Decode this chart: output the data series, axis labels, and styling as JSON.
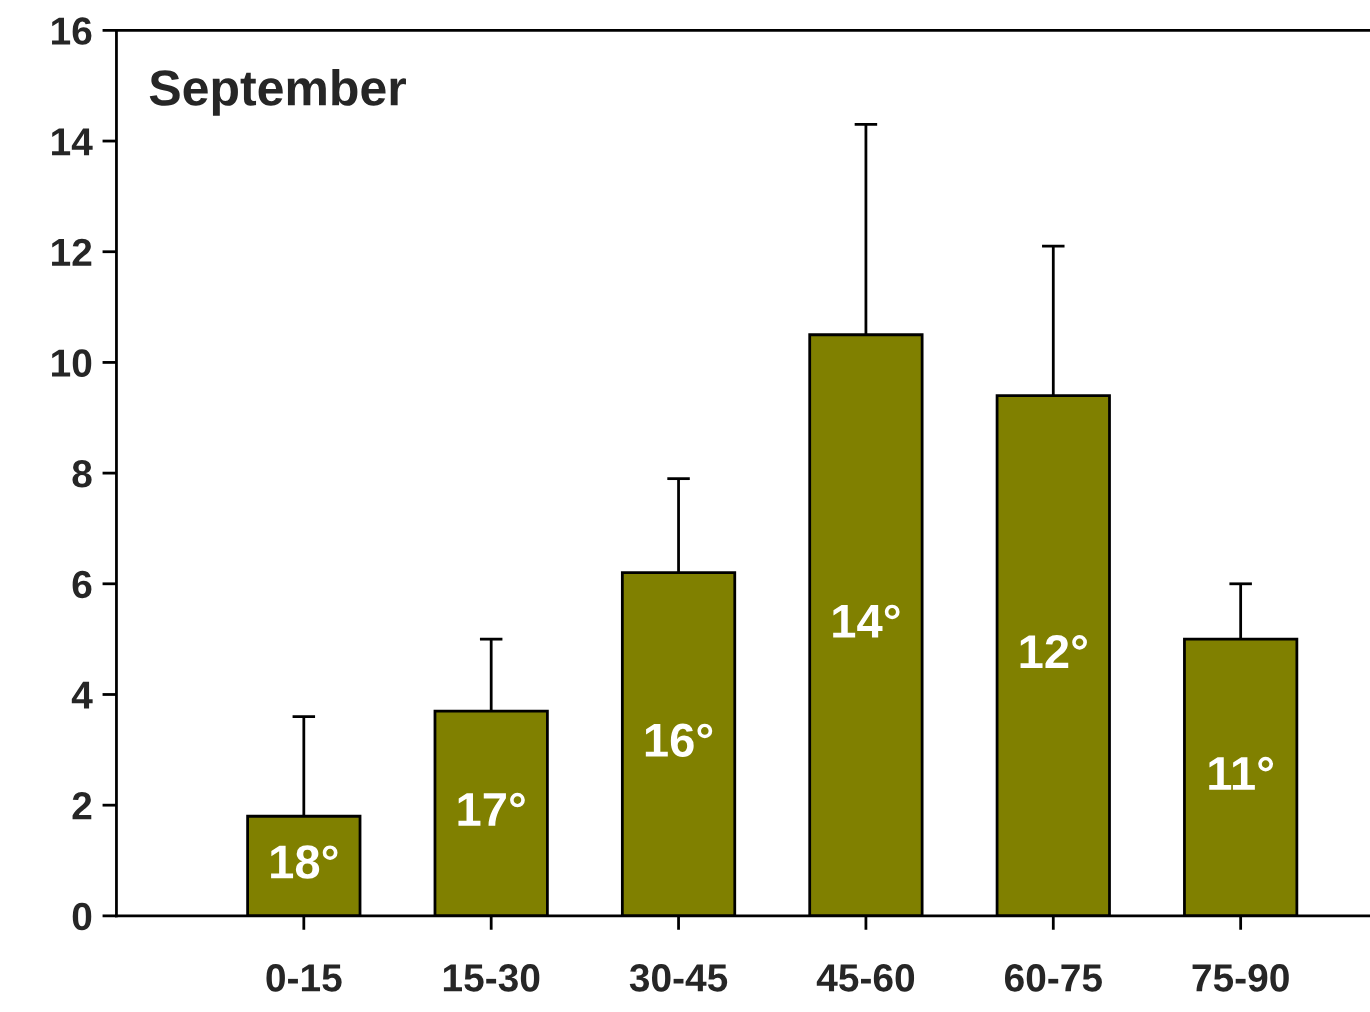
{
  "chart_data": {
    "type": "bar",
    "title": "September",
    "categories": [
      "0-15",
      "15-30",
      "30-45",
      "45-60",
      "60-75",
      "75-90"
    ],
    "values": [
      1.8,
      3.7,
      6.2,
      10.5,
      9.4,
      5.0
    ],
    "errors": [
      [
        1.8,
        3.6
      ],
      [
        3.7,
        5.0
      ],
      [
        6.2,
        7.9
      ],
      [
        10.5,
        14.3
      ],
      [
        9.4,
        12.1
      ],
      [
        5.0,
        6.0
      ]
    ],
    "annotations": [
      "18°",
      "17°",
      "16°",
      "14°",
      "12°",
      "11°"
    ],
    "color": "#808000",
    "ylim": [
      0,
      16
    ],
    "yticks": [
      0,
      2,
      4,
      6,
      8,
      10,
      12,
      14,
      16
    ],
    "grid": false
  }
}
